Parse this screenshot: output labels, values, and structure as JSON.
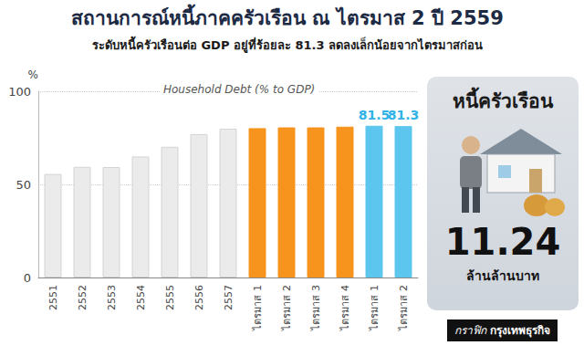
{
  "chart_data": {
    "type": "bar",
    "title": "สถานการณ์หนี้ภาคครัวเรือน ณ ไตรมาส 2 ปี 2559",
    "subtitle": "ระดับหนี้ครัวเรือนต่อ GDP อยู่ที่ร้อยละ 81.3 ลดลงเล็กน้อยจากไตรมาสก่อน",
    "y_label": "%",
    "annotation": "Household Debt (% to GDP)",
    "categories": [
      "2551",
      "2552",
      "2553",
      "2554",
      "2555",
      "2556",
      "2557",
      "ไตรมาส 1",
      "ไตรมาส 2",
      "ไตรมาส 3",
      "ไตรมาส 4",
      "ไตรมาส 1",
      "ไตรมาส 2"
    ],
    "series": [
      {
        "color": "#ebebeb",
        "values": [
          55.6,
          59.4,
          59.3,
          65.0,
          70.2,
          77.0,
          79.9,
          null,
          null,
          null,
          null,
          null,
          null
        ]
      },
      {
        "color": "#f7941d",
        "values": [
          null,
          null,
          null,
          null,
          null,
          null,
          null,
          80.2,
          80.6,
          80.6,
          81.0,
          null,
          null
        ]
      },
      {
        "color": "#5cc6ef",
        "values": [
          null,
          null,
          null,
          null,
          null,
          null,
          null,
          null,
          null,
          null,
          null,
          81.5,
          81.3
        ],
        "data_labels": true
      }
    ],
    "ylim": [
      0,
      100
    ],
    "yticks": [
      0,
      50,
      100
    ],
    "grid": true,
    "panel": {
      "title": "หนี้ครัวเรือน",
      "value": 11.24,
      "unit": "ล้านล้านบาท"
    },
    "credit": "กราฟิก กรุงเทพธุรกิจ"
  }
}
